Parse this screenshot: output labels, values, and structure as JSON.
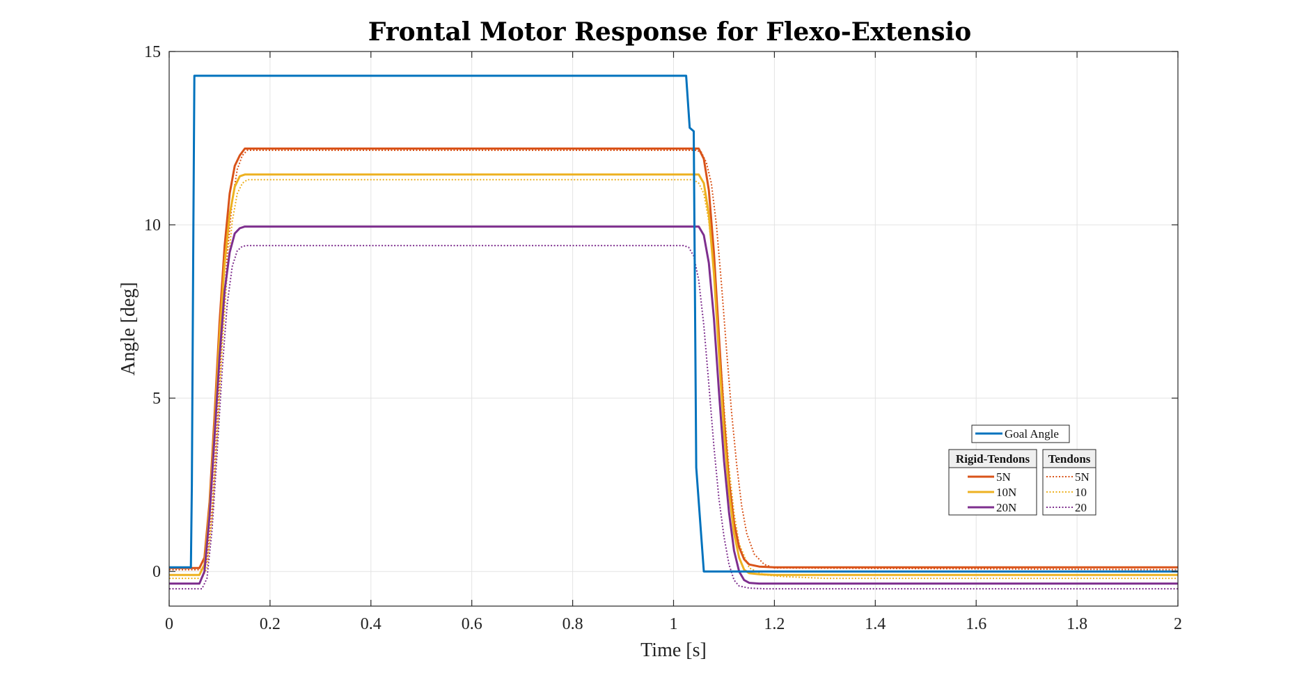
{
  "chart_data": {
    "type": "line",
    "title": "Frontal Motor Response for Flexo-Extensio",
    "xlabel": "Time [s]",
    "ylabel": "Angle [deg]",
    "xlim": [
      0,
      2
    ],
    "ylim": [
      -1,
      15
    ],
    "xticks": [
      0,
      0.2,
      0.4,
      0.6,
      0.8,
      1,
      1.2,
      1.4,
      1.6,
      1.8,
      2
    ],
    "xtick_labels": [
      "0",
      "0.2",
      "0.4",
      "0.6",
      "0.8",
      "1",
      "1.2",
      "1.4",
      "1.6",
      "1.8",
      "2"
    ],
    "yticks": [
      0,
      5,
      10,
      15
    ],
    "ytick_labels": [
      "0",
      "5",
      "10",
      "15"
    ],
    "grid": true,
    "legend_placement": "lower-right",
    "legend": {
      "goal_label": "Goal Angle",
      "group1_title": "Rigid-Tendons",
      "group1_entries": [
        "5N",
        "10N",
        "20N"
      ],
      "group2_title": "Tendons",
      "group2_entries": [
        "5N",
        "10",
        "20"
      ]
    },
    "series": [
      {
        "name": "Goal Angle",
        "group": "goal",
        "color": "#0072BD",
        "style": "solid",
        "x": [
          0,
          0.043,
          0.045,
          0.048,
          0.05,
          1.025,
          1.032,
          1.032,
          1.04,
          1.045,
          1.06,
          2
        ],
        "y": [
          0.12,
          0.12,
          2.5,
          10,
          14.3,
          14.3,
          12.8,
          12.8,
          12.7,
          3.0,
          0.0,
          0.0
        ]
      },
      {
        "name": "5N",
        "group": "Rigid-Tendons",
        "color": "#D95319",
        "style": "solid",
        "x": [
          0,
          0.06,
          0.07,
          0.08,
          0.09,
          0.1,
          0.11,
          0.12,
          0.13,
          0.14,
          0.15,
          1.04,
          1.05,
          1.06,
          1.07,
          1.08,
          1.09,
          1.1,
          1.11,
          1.12,
          1.13,
          1.14,
          1.15,
          1.17,
          1.2,
          2
        ],
        "y": [
          0.1,
          0.1,
          0.4,
          2.0,
          4.5,
          7.2,
          9.4,
          10.9,
          11.7,
          12.0,
          12.2,
          12.2,
          12.2,
          11.9,
          11.0,
          9.2,
          6.8,
          4.4,
          2.6,
          1.4,
          0.7,
          0.35,
          0.2,
          0.14,
          0.12,
          0.12
        ]
      },
      {
        "name": "10N",
        "group": "Rigid-Tendons",
        "color": "#EDB120",
        "style": "solid",
        "x": [
          0,
          0.06,
          0.07,
          0.08,
          0.09,
          0.1,
          0.11,
          0.12,
          0.13,
          0.14,
          0.15,
          1.04,
          1.05,
          1.06,
          1.07,
          1.08,
          1.09,
          1.1,
          1.11,
          1.12,
          1.13,
          1.14,
          1.15,
          1.17,
          1.2,
          2
        ],
        "y": [
          -0.1,
          -0.1,
          0.2,
          1.8,
          4.2,
          6.8,
          8.9,
          10.3,
          11.1,
          11.4,
          11.45,
          11.45,
          11.45,
          11.2,
          10.3,
          8.6,
          6.3,
          4.0,
          2.3,
          1.1,
          0.4,
          0.05,
          -0.05,
          -0.08,
          -0.1,
          -0.1
        ]
      },
      {
        "name": "20N",
        "group": "Rigid-Tendons",
        "color": "#7E2F8E",
        "style": "solid",
        "x": [
          0,
          0.06,
          0.07,
          0.08,
          0.09,
          0.1,
          0.11,
          0.12,
          0.13,
          0.14,
          0.15,
          1.04,
          1.05,
          1.06,
          1.07,
          1.08,
          1.09,
          1.1,
          1.11,
          1.12,
          1.13,
          1.14,
          1.15,
          1.17,
          1.2,
          2
        ],
        "y": [
          -0.35,
          -0.35,
          0.0,
          1.6,
          3.9,
          6.2,
          8.1,
          9.2,
          9.75,
          9.9,
          9.95,
          9.95,
          9.95,
          9.7,
          8.9,
          7.3,
          5.2,
          3.2,
          1.7,
          0.6,
          0.0,
          -0.25,
          -0.33,
          -0.35,
          -0.35,
          -0.35
        ]
      },
      {
        "name": "5N",
        "group": "Tendons",
        "color": "#D95319",
        "style": "dotted",
        "x": [
          0,
          0.065,
          0.075,
          0.085,
          0.095,
          0.105,
          0.115,
          0.125,
          0.135,
          0.145,
          0.155,
          1.045,
          1.055,
          1.065,
          1.075,
          1.085,
          1.095,
          1.105,
          1.115,
          1.125,
          1.135,
          1.145,
          1.16,
          1.18,
          1.2,
          2
        ],
        "y": [
          0.05,
          0.05,
          0.3,
          1.8,
          4.2,
          6.9,
          9.1,
          10.7,
          11.6,
          12.0,
          12.15,
          12.15,
          12.1,
          11.8,
          11.2,
          10.0,
          8.3,
          6.4,
          4.6,
          3.1,
          1.9,
          1.1,
          0.5,
          0.2,
          0.1,
          0.05
        ]
      },
      {
        "name": "10",
        "group": "Tendons",
        "color": "#EDB120",
        "style": "dotted",
        "x": [
          0,
          0.065,
          0.075,
          0.085,
          0.095,
          0.105,
          0.115,
          0.125,
          0.135,
          0.145,
          0.155,
          1.04,
          1.05,
          1.06,
          1.07,
          1.08,
          1.09,
          1.1,
          1.11,
          1.12,
          1.13,
          1.15,
          1.18,
          1.22,
          1.3,
          2
        ],
        "y": [
          -0.2,
          -0.2,
          0.1,
          1.5,
          3.8,
          6.4,
          8.6,
          10.1,
          10.9,
          11.2,
          11.3,
          11.3,
          11.2,
          10.9,
          10.1,
          8.7,
          6.8,
          4.8,
          3.0,
          1.7,
          0.8,
          0.1,
          -0.1,
          -0.15,
          -0.2,
          -0.2
        ]
      },
      {
        "name": "20",
        "group": "Tendons",
        "color": "#7E2F8E",
        "style": "dotted",
        "x": [
          0,
          0.065,
          0.075,
          0.085,
          0.095,
          0.105,
          0.115,
          0.125,
          0.135,
          0.145,
          0.155,
          1.02,
          1.03,
          1.04,
          1.05,
          1.06,
          1.07,
          1.08,
          1.09,
          1.1,
          1.11,
          1.12,
          1.13,
          1.15,
          1.18,
          2
        ],
        "y": [
          -0.5,
          -0.5,
          -0.2,
          1.2,
          3.4,
          5.8,
          7.7,
          8.8,
          9.25,
          9.38,
          9.4,
          9.4,
          9.35,
          9.1,
          8.4,
          7.1,
          5.4,
          3.6,
          2.1,
          1.0,
          0.2,
          -0.25,
          -0.42,
          -0.48,
          -0.5,
          -0.5
        ]
      }
    ]
  }
}
